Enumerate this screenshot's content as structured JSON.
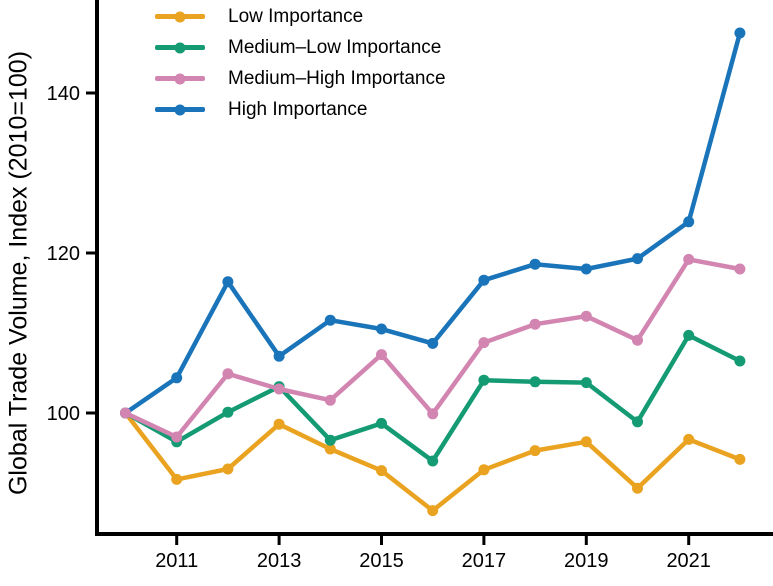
{
  "chart_data": {
    "type": "line",
    "title": "",
    "xlabel": "",
    "ylabel": "Global Trade Volume, Index (2010=100)",
    "x": [
      2010,
      2011,
      2012,
      2013,
      2014,
      2015,
      2016,
      2017,
      2018,
      2019,
      2020,
      2021,
      2022
    ],
    "series": [
      {
        "name": "Low Importance",
        "color": "#EAA320",
        "values": [
          100,
          91.7,
          93.0,
          98.6,
          95.5,
          92.8,
          87.8,
          92.9,
          95.3,
          96.4,
          90.6,
          96.7,
          94.2
        ]
      },
      {
        "name": "Medium–Low Importance",
        "color": "#149B74",
        "values": [
          100,
          96.4,
          100.1,
          103.3,
          96.6,
          98.7,
          94.0,
          104.1,
          103.9,
          103.8,
          98.9,
          109.7,
          106.5
        ]
      },
      {
        "name": "Medium–High Importance",
        "color": "#D285B1",
        "values": [
          100,
          97.0,
          104.9,
          103.0,
          101.6,
          107.3,
          99.9,
          108.8,
          111.1,
          112.1,
          109.1,
          119.2,
          118.0
        ]
      },
      {
        "name": "High Importance",
        "color": "#1A74B9",
        "values": [
          100,
          104.4,
          116.4,
          107.1,
          111.6,
          110.5,
          108.7,
          116.6,
          118.6,
          118.0,
          119.3,
          123.9,
          147.5
        ]
      }
    ],
    "yticks": [
      100,
      120,
      140
    ],
    "xticks": [
      2011,
      2013,
      2015,
      2017,
      2019,
      2021
    ],
    "xlim": [
      2009.4,
      2022.65
    ],
    "ylim": [
      84.9,
      151.6
    ],
    "grid": false,
    "legend_position": "top-left",
    "background": "#ffffff",
    "axis_color": "#000000"
  }
}
